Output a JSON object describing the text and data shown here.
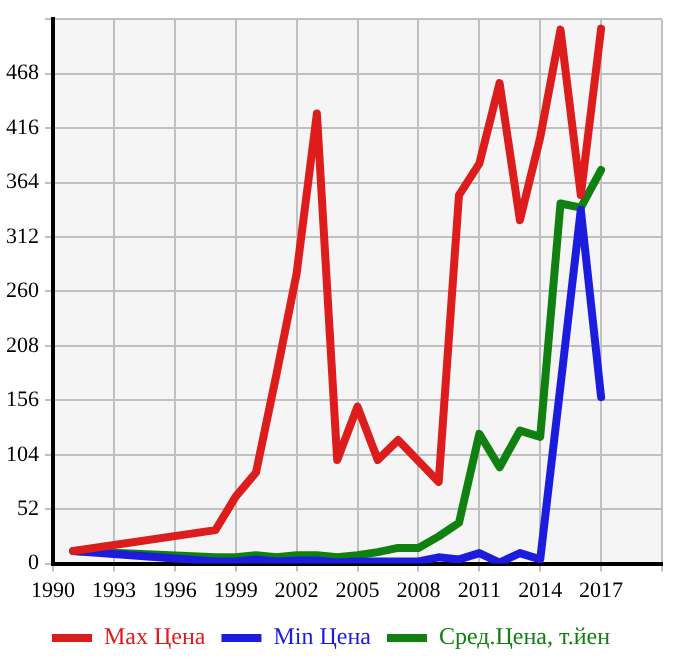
{
  "chart_data": {
    "type": "line",
    "x": [
      1991,
      1998,
      1999,
      2000,
      2001,
      2002,
      2003,
      2004,
      2005,
      2006,
      2007,
      2008,
      2009,
      2010,
      2011,
      2012,
      2013,
      2014,
      2015,
      2016,
      2017
    ],
    "series": [
      {
        "name": "Max Цена",
        "color": "#dd1c1c",
        "values": [
          12,
          32,
          64,
          87,
          180,
          277,
          430,
          99,
          150,
          99,
          118,
          98,
          78,
          352,
          382,
          459,
          328,
          407,
          510,
          352,
          511
        ]
      },
      {
        "name": "Min Цена",
        "color": "#1c1cdd",
        "values": [
          12,
          2,
          2,
          4,
          2,
          3,
          3,
          1,
          2,
          2,
          2,
          2,
          6,
          4,
          10,
          1,
          10,
          4,
          170,
          338,
          159
        ]
      },
      {
        "name": "Сред.Цена, т.йен",
        "color": "#108010",
        "values": [
          12,
          6,
          6,
          8,
          6,
          8,
          8,
          6,
          8,
          11,
          15,
          15,
          26,
          39,
          124,
          92,
          127,
          121,
          344,
          340,
          376
        ]
      }
    ],
    "xlim": [
      1990,
      2020
    ],
    "xticks": [
      1990,
      1993,
      1996,
      1999,
      2002,
      2005,
      2008,
      2011,
      2014,
      2017,
      {
        "value": 2020,
        "label": null
      }
    ],
    "ylim": [
      0,
      520
    ],
    "yticks": [
      0,
      52,
      104,
      156,
      208,
      260,
      312,
      364,
      416,
      468,
      {
        "value": 520,
        "label": null
      }
    ],
    "grid": true,
    "legend": "bottom",
    "marker": "none",
    "line_style": "solid"
  }
}
